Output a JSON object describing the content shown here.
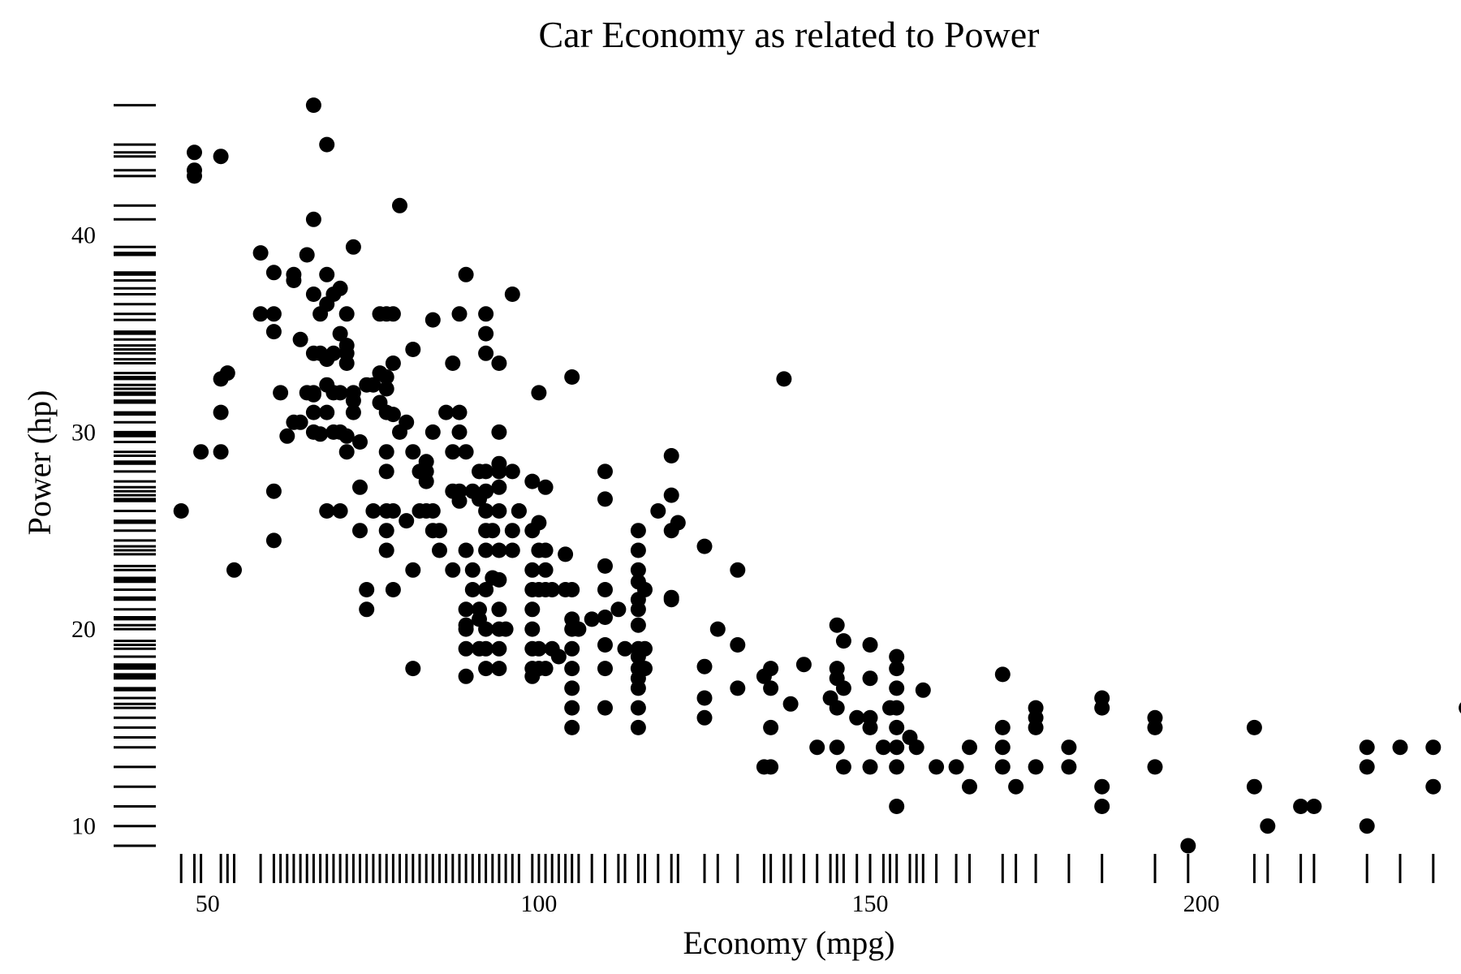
{
  "chart_data": {
    "type": "scatter",
    "title": "Car Economy as related to Power",
    "xlabel": "Economy (mpg)",
    "ylabel": "Power (hp)",
    "xlim": [
      45,
      230
    ],
    "ylim": [
      9,
      46.5
    ],
    "x_ticks": [
      50,
      100,
      150,
      200
    ],
    "y_ticks": [
      10,
      20,
      30,
      40
    ],
    "grid": false,
    "rug": true,
    "marker_color": "#000000",
    "points": [
      [
        46,
        26
      ],
      [
        48,
        44.2
      ],
      [
        48,
        43.3
      ],
      [
        48,
        43
      ],
      [
        49,
        29
      ],
      [
        52,
        44
      ],
      [
        52,
        32.7
      ],
      [
        52,
        31
      ],
      [
        52,
        29
      ],
      [
        53,
        33
      ],
      [
        54,
        23
      ],
      [
        58,
        39.1
      ],
      [
        58,
        36
      ],
      [
        60,
        38.1
      ],
      [
        60,
        36
      ],
      [
        60,
        35.1
      ],
      [
        60,
        27
      ],
      [
        60,
        24.5
      ],
      [
        61,
        32
      ],
      [
        62,
        29.8
      ],
      [
        63,
        38
      ],
      [
        63,
        30.5
      ],
      [
        63,
        37.7
      ],
      [
        64,
        34.7
      ],
      [
        64,
        30.5
      ],
      [
        65,
        39
      ],
      [
        65,
        32
      ],
      [
        66,
        46.6
      ],
      [
        66,
        40.8
      ],
      [
        66,
        37
      ],
      [
        66,
        34
      ],
      [
        66,
        32
      ],
      [
        66,
        31.9
      ],
      [
        66,
        30
      ],
      [
        66,
        31
      ],
      [
        67,
        36
      ],
      [
        67,
        34
      ],
      [
        67,
        29.9
      ],
      [
        68,
        44.6
      ],
      [
        68,
        38
      ],
      [
        68,
        36.5
      ],
      [
        68,
        33.7
      ],
      [
        68,
        32.4
      ],
      [
        68,
        31
      ],
      [
        68,
        26
      ],
      [
        69,
        37
      ],
      [
        69,
        34
      ],
      [
        69,
        32
      ],
      [
        69,
        30
      ],
      [
        70,
        37.3
      ],
      [
        70,
        35
      ],
      [
        70,
        32
      ],
      [
        70,
        30
      ],
      [
        70,
        26
      ],
      [
        71,
        36
      ],
      [
        71,
        34.4
      ],
      [
        71,
        34
      ],
      [
        71,
        33.5
      ],
      [
        71,
        29.8
      ],
      [
        71,
        29
      ],
      [
        72,
        39.4
      ],
      [
        72,
        32
      ],
      [
        72,
        31.6
      ],
      [
        72,
        31
      ],
      [
        73,
        29.5
      ],
      [
        73,
        27.2
      ],
      [
        73,
        25
      ],
      [
        74,
        32.4
      ],
      [
        74,
        22
      ],
      [
        74,
        21
      ],
      [
        75,
        32.4
      ],
      [
        75,
        26
      ],
      [
        76,
        36
      ],
      [
        76,
        33
      ],
      [
        76,
        31.5
      ],
      [
        77,
        36
      ],
      [
        77,
        32.8
      ],
      [
        77,
        32.2
      ],
      [
        77,
        29
      ],
      [
        77,
        31
      ],
      [
        77,
        28
      ],
      [
        77,
        26
      ],
      [
        77,
        25
      ],
      [
        77,
        24
      ],
      [
        78,
        36
      ],
      [
        78,
        30.9
      ],
      [
        78,
        33.5
      ],
      [
        78,
        26
      ],
      [
        78,
        22
      ],
      [
        79,
        41.5
      ],
      [
        79,
        30
      ],
      [
        80,
        25.5
      ],
      [
        80,
        30.5
      ],
      [
        81,
        34.2
      ],
      [
        81,
        29
      ],
      [
        81,
        23
      ],
      [
        81,
        18
      ],
      [
        82,
        26
      ],
      [
        82,
        28
      ],
      [
        83,
        28.5
      ],
      [
        83,
        28
      ],
      [
        83,
        27.5
      ],
      [
        83,
        26
      ],
      [
        84,
        35.7
      ],
      [
        84,
        30
      ],
      [
        84,
        26
      ],
      [
        84,
        25
      ],
      [
        85,
        24
      ],
      [
        85,
        25
      ],
      [
        86,
        31
      ],
      [
        87,
        33.5
      ],
      [
        87,
        29
      ],
      [
        87,
        23
      ],
      [
        87,
        27
      ],
      [
        88,
        36
      ],
      [
        88,
        31
      ],
      [
        88,
        30
      ],
      [
        88,
        27
      ],
      [
        88,
        26.5
      ],
      [
        89,
        38
      ],
      [
        89,
        29
      ],
      [
        89,
        24
      ],
      [
        89,
        19
      ],
      [
        89,
        17.6
      ],
      [
        89,
        21
      ],
      [
        89,
        20
      ],
      [
        89,
        20.2
      ],
      [
        90,
        22
      ],
      [
        90,
        23
      ],
      [
        90,
        27
      ],
      [
        91,
        28
      ],
      [
        91,
        26.6
      ],
      [
        91,
        21
      ],
      [
        91,
        20.5
      ],
      [
        91,
        19
      ],
      [
        92,
        36
      ],
      [
        92,
        35
      ],
      [
        92,
        34
      ],
      [
        92,
        28
      ],
      [
        92,
        27
      ],
      [
        92,
        26
      ],
      [
        92,
        25
      ],
      [
        92,
        24
      ],
      [
        92,
        22
      ],
      [
        92,
        20
      ],
      [
        92,
        19
      ],
      [
        92,
        18
      ],
      [
        93,
        25
      ],
      [
        93,
        22.6
      ],
      [
        94,
        33.5
      ],
      [
        94,
        30
      ],
      [
        94,
        28.4
      ],
      [
        94,
        28
      ],
      [
        94,
        27.2
      ],
      [
        94,
        26
      ],
      [
        94,
        24
      ],
      [
        94,
        22.5
      ],
      [
        94,
        21
      ],
      [
        94,
        20
      ],
      [
        94,
        19
      ],
      [
        94,
        18
      ],
      [
        95,
        20
      ],
      [
        96,
        37
      ],
      [
        96,
        28
      ],
      [
        96,
        25
      ],
      [
        96,
        24
      ],
      [
        97,
        26
      ],
      [
        97,
        26
      ],
      [
        99,
        27.5
      ],
      [
        99,
        25
      ],
      [
        99,
        23
      ],
      [
        99,
        22
      ],
      [
        99,
        21
      ],
      [
        99,
        20
      ],
      [
        99,
        19
      ],
      [
        99,
        18
      ],
      [
        99,
        17.6
      ],
      [
        100,
        32
      ],
      [
        100,
        25.4
      ],
      [
        100,
        24
      ],
      [
        100,
        22
      ],
      [
        100,
        19
      ],
      [
        100,
        18
      ],
      [
        101,
        27.2
      ],
      [
        101,
        24
      ],
      [
        101,
        23
      ],
      [
        101,
        22
      ],
      [
        101,
        18
      ],
      [
        102,
        22
      ],
      [
        102,
        19
      ],
      [
        103,
        18.6
      ],
      [
        104,
        23.8
      ],
      [
        104,
        22
      ],
      [
        105,
        32.8
      ],
      [
        105,
        22
      ],
      [
        105,
        20.5
      ],
      [
        105,
        20
      ],
      [
        105,
        19
      ],
      [
        105,
        18
      ],
      [
        105,
        17
      ],
      [
        105,
        16
      ],
      [
        105,
        15
      ],
      [
        106,
        20
      ],
      [
        108,
        20.5
      ],
      [
        110,
        28
      ],
      [
        110,
        26.6
      ],
      [
        110,
        23.2
      ],
      [
        110,
        22
      ],
      [
        110,
        20.6
      ],
      [
        110,
        19.2
      ],
      [
        110,
        18
      ],
      [
        110,
        16
      ],
      [
        112,
        21
      ],
      [
        113,
        19
      ],
      [
        115,
        25
      ],
      [
        115,
        24
      ],
      [
        115,
        23
      ],
      [
        115,
        22.4
      ],
      [
        115,
        21.5
      ],
      [
        115,
        21
      ],
      [
        115,
        20.2
      ],
      [
        115,
        19
      ],
      [
        115,
        18.6
      ],
      [
        115,
        18
      ],
      [
        115,
        17.5
      ],
      [
        115,
        17
      ],
      [
        115,
        16
      ],
      [
        115,
        15
      ],
      [
        116,
        22
      ],
      [
        116,
        19
      ],
      [
        116,
        18
      ],
      [
        118,
        26
      ],
      [
        120,
        28.8
      ],
      [
        120,
        26.8
      ],
      [
        120,
        25
      ],
      [
        120,
        21.5
      ],
      [
        120,
        21.6
      ],
      [
        121,
        25.4
      ],
      [
        125,
        24.2
      ],
      [
        125,
        18.1
      ],
      [
        125,
        16.5
      ],
      [
        125,
        15.5
      ],
      [
        127,
        20
      ],
      [
        130,
        23
      ],
      [
        130,
        19.2
      ],
      [
        130,
        17
      ],
      [
        134,
        17.6
      ],
      [
        134,
        13
      ],
      [
        135,
        18
      ],
      [
        135,
        17
      ],
      [
        135,
        15
      ],
      [
        135,
        13
      ],
      [
        137,
        32.7
      ],
      [
        138,
        16.2
      ],
      [
        140,
        18.2
      ],
      [
        142,
        14
      ],
      [
        144,
        16.5
      ],
      [
        145,
        20.2
      ],
      [
        145,
        18
      ],
      [
        145,
        17.5
      ],
      [
        145,
        16
      ],
      [
        145,
        14
      ],
      [
        146,
        19.4
      ],
      [
        146,
        17
      ],
      [
        146,
        13
      ],
      [
        148,
        15.5
      ],
      [
        150,
        19.2
      ],
      [
        150,
        17.5
      ],
      [
        150,
        15.5
      ],
      [
        150,
        15
      ],
      [
        150,
        13
      ],
      [
        152,
        14
      ],
      [
        153,
        16
      ],
      [
        154,
        18.6
      ],
      [
        154,
        18
      ],
      [
        154,
        17
      ],
      [
        154,
        16
      ],
      [
        154,
        15
      ],
      [
        154,
        14
      ],
      [
        154,
        13
      ],
      [
        154,
        11
      ],
      [
        156,
        14.5
      ],
      [
        157,
        14
      ],
      [
        158,
        16.9
      ],
      [
        160,
        13
      ],
      [
        163,
        13
      ],
      [
        165,
        14
      ],
      [
        165,
        12
      ],
      [
        170,
        17.7
      ],
      [
        170,
        15
      ],
      [
        170,
        14
      ],
      [
        170,
        13
      ],
      [
        172,
        12
      ],
      [
        175,
        16
      ],
      [
        175,
        15.5
      ],
      [
        175,
        15
      ],
      [
        175,
        13
      ],
      [
        180,
        14
      ],
      [
        180,
        13
      ],
      [
        185,
        16.5
      ],
      [
        185,
        16
      ],
      [
        185,
        12
      ],
      [
        185,
        11
      ],
      [
        193,
        15.5
      ],
      [
        193,
        15
      ],
      [
        193,
        13
      ],
      [
        198,
        9
      ],
      [
        208,
        15
      ],
      [
        208,
        12
      ],
      [
        210,
        10
      ],
      [
        215,
        11
      ],
      [
        217,
        11
      ],
      [
        225,
        14
      ],
      [
        225,
        13
      ],
      [
        225,
        10
      ],
      [
        230,
        14
      ],
      [
        235,
        14
      ],
      [
        235,
        12
      ],
      [
        240,
        16
      ]
    ]
  }
}
